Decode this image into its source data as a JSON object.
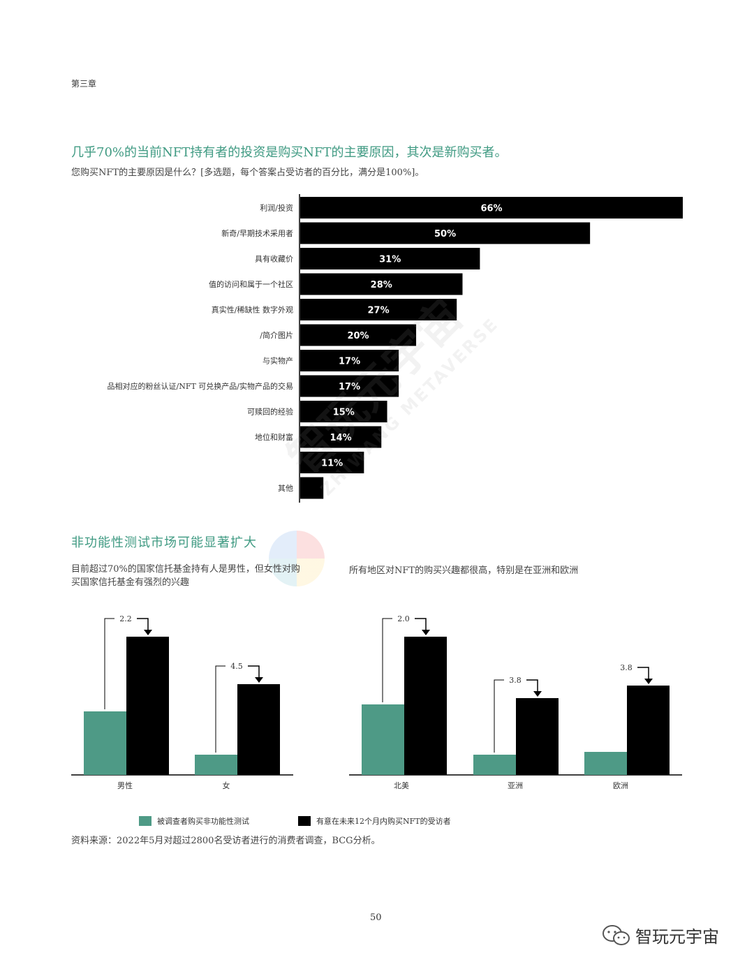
{
  "header": {
    "chapter": "第三章"
  },
  "section1": {
    "title": "几乎70%的当前NFT持有者的投资是购买NFT的主要原因，其次是新购买者。",
    "subtitle": "您购买NFT的主要原因是什么？[多选题，每个答案占受访者的百分比，满分是100%]。"
  },
  "section2": {
    "title": "非功能性测试市场可能显著扩大",
    "desc_left": "目前超过70%的国家信托基金持有人是男性，但女性对购买国家信托基金有强烈的兴趣",
    "desc_right": "所有地区对NFT的购买兴趣都很高，特别是在亚洲和欧洲"
  },
  "legend": {
    "item1": "被调查者购买非功能性测试",
    "item2": "有意在未来12个月内购买NFT的受访者"
  },
  "source": "资料来源：2022年5月对超过2800名受访者进行的消费者调查，BCG分析。",
  "page_number": "50",
  "watermark": {
    "cn": "智玩元宇宙",
    "en": "ZHIWANG METAVERSE"
  },
  "brand": {
    "name": "智玩元宇宙",
    "icon": "wechat-icon"
  },
  "colors": {
    "teal": "#4e9a86",
    "black": "#000000",
    "title_green": "#3f9a82"
  },
  "chart_data": [
    {
      "type": "bar",
      "orientation": "horizontal",
      "categories": [
        "利润/投资",
        "新奇/早期技术采用者",
        "具有收藏价",
        "值的访问和属于一个社区",
        "真实性/稀缺性 数字外观",
        "/简介图片",
        "与实物产",
        "品相对应的粉丝认证/NFT 可兑换产品/实物产品的交易",
        "可赎回的经验",
        "地位和财富",
        "",
        "其他"
      ],
      "values": [
        66,
        50,
        31,
        28,
        27,
        20,
        17,
        17,
        15,
        14,
        11,
        4
      ],
      "value_labels": [
        "66%",
        "50%",
        "31%",
        "28%",
        "27%",
        "20%",
        "17%",
        "17%",
        "15%",
        "14%",
        "11%",
        ""
      ],
      "xlim": [
        0,
        66
      ]
    },
    {
      "type": "bar",
      "categories": [
        "男性",
        "女"
      ],
      "series": [
        {
          "name": "被调查者购买非功能性测试",
          "values": [
            1.0,
            1.0
          ]
        },
        {
          "name": "有意在未来12个月内购买NFT的受访者",
          "values": [
            2.2,
            4.5
          ]
        }
      ],
      "annotations": [
        "2.2",
        "4.5"
      ]
    },
    {
      "type": "bar",
      "categories": [
        "北美",
        "亚洲",
        "欧洲"
      ],
      "series": [
        {
          "name": "被调查者购买非功能性测试",
          "values": [
            1.0,
            1.0,
            1.0
          ]
        },
        {
          "name": "有意在未来12个月内购买NFT的受访者",
          "values": [
            2.0,
            3.8,
            3.8
          ]
        }
      ],
      "annotations": [
        "2.0",
        "3.8",
        "3.8"
      ]
    }
  ]
}
